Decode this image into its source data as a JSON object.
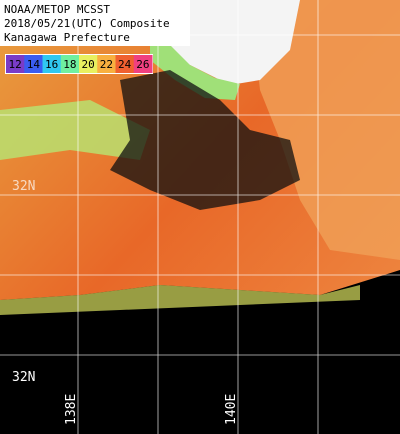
{
  "header": {
    "lines": [
      "NOAA/METOP MCSST",
      "2018/05/21(UTC) Composite",
      "Kanagawa Prefecture"
    ]
  },
  "legend": {
    "labels": [
      "12",
      "14",
      "16",
      "18",
      "20",
      "22",
      "24",
      "26"
    ],
    "colors": [
      "#7a3cc8",
      "#3a5cf0",
      "#30c8f0",
      "#70f0a0",
      "#e8f060",
      "#f8b040",
      "#f06030",
      "#f04080"
    ]
  },
  "lat_labels": [
    "32N",
    "32N"
  ],
  "lon_labels": [
    "138E",
    "140E"
  ]
}
